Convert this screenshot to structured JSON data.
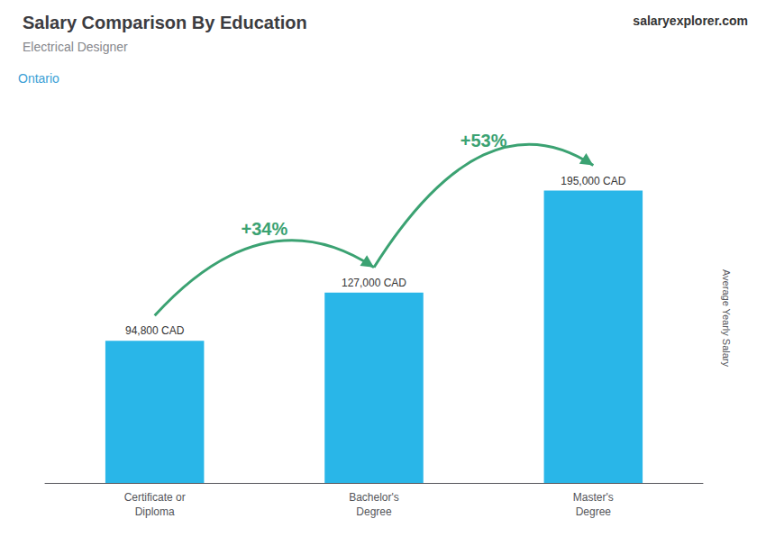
{
  "chart_data": {
    "type": "bar",
    "title": "Salary Comparison By Education",
    "subtitle": "Electrical Designer",
    "ylabel": "Average Yearly Salary",
    "annotations": [
      "Ontario",
      "salaryexplorer.com"
    ],
    "categories": [
      "Certificate or\nDiploma",
      "Bachelor's\nDegree",
      "Master's\nDegree"
    ],
    "values": [
      94800,
      127000,
      195000
    ],
    "value_labels": [
      "94,800 CAD",
      "127,000 CAD",
      "195,000 CAD"
    ],
    "arrows": [
      {
        "from": "Certificate or\nDiploma",
        "to": "Bachelor's\nDegree",
        "label": "+34%"
      },
      {
        "from": "Bachelor's\nDegree",
        "to": "Master's\nDegree",
        "label": "+53%"
      }
    ],
    "color": "#29b6e8",
    "ylim": [
      0,
      220000
    ],
    "grid": false,
    "data_labels": true,
    "tick_labels": "x"
  }
}
